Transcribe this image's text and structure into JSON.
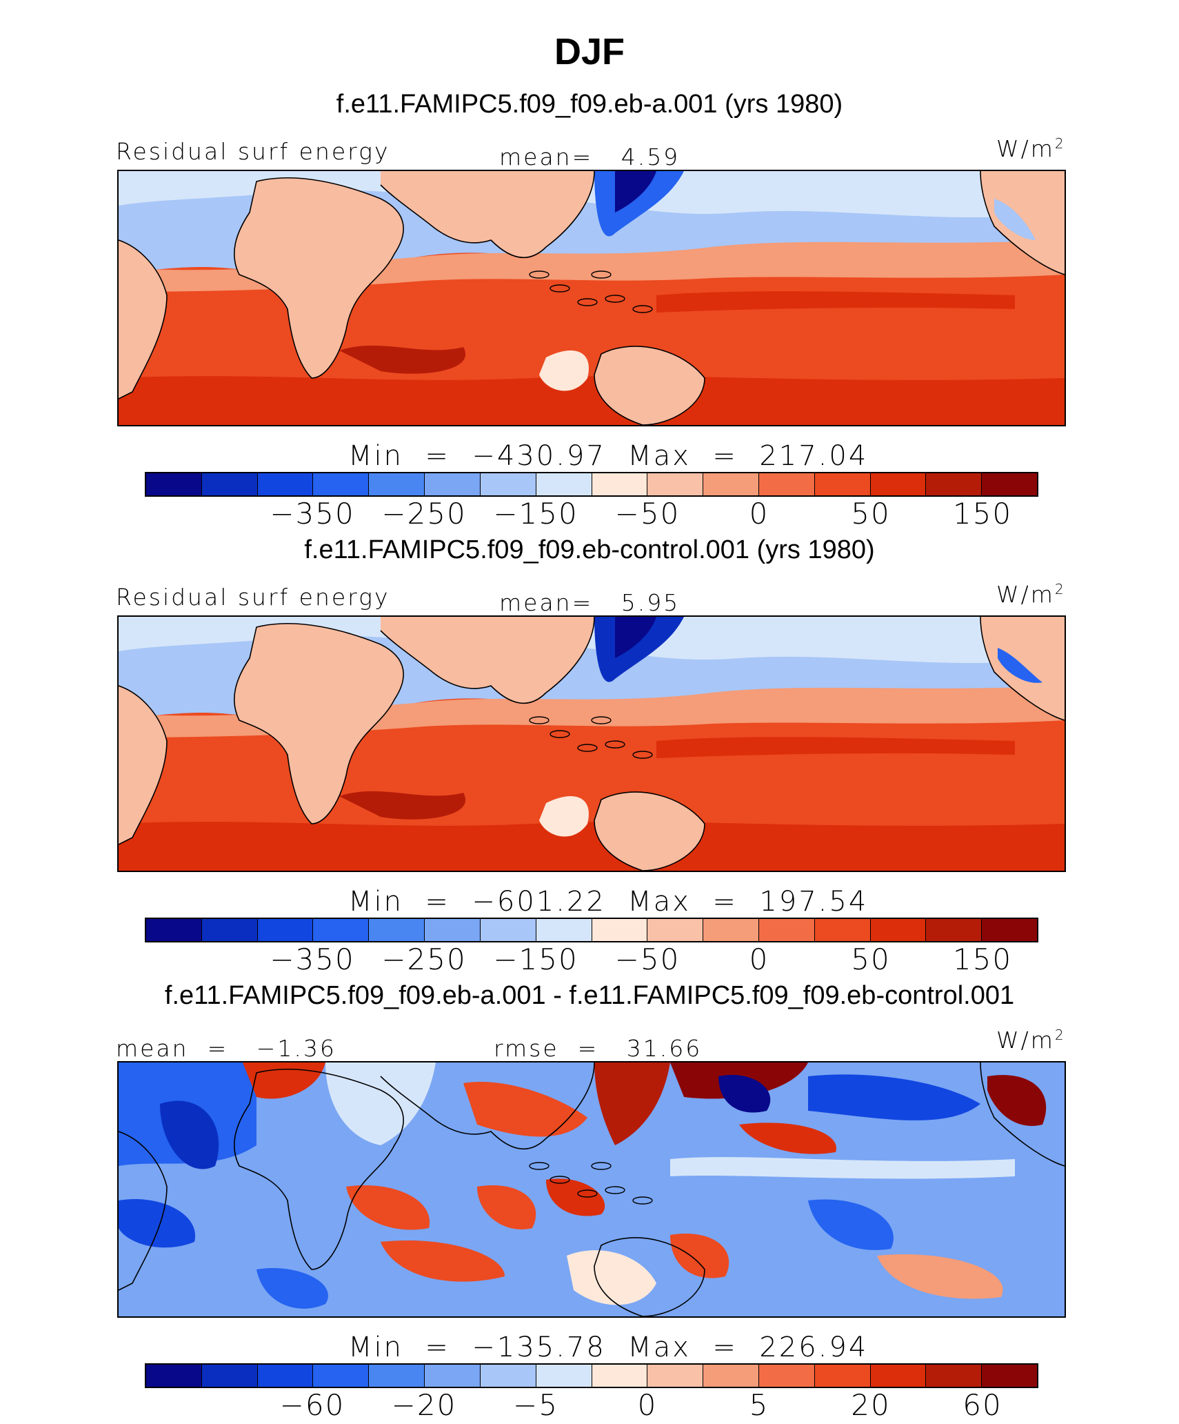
{
  "title": "DJF",
  "colors": {
    "palette_a": [
      "#08088a",
      "#0a2fc0",
      "#1246e0",
      "#2563f0",
      "#4a86f2",
      "#7aa6f4",
      "#a8c6f7",
      "#d6e6fa",
      "#fde8da",
      "#f9c2a8",
      "#f59c78",
      "#f26d45",
      "#ec4a20",
      "#dc2e0a",
      "#b51c08",
      "#8a0606"
    ],
    "land": "#f8bca0",
    "coast": "#000000"
  },
  "panels": [
    {
      "case_title": "f.e11.FAMIPC5.f09_f09.eb-a.001 (yrs 1980)",
      "left_label": "Residual surf energy",
      "center_label": "mean=   4.59",
      "unit": "W/m",
      "unit_sup": "2",
      "minmax": "Min  =  −430.97  Max  =  217.04",
      "variant": "a"
    },
    {
      "case_title": "f.e11.FAMIPC5.f09_f09.eb-control.001 (yrs 1980)",
      "left_label": "Residual surf energy",
      "center_label": "mean=   5.95",
      "unit": "W/m",
      "unit_sup": "2",
      "minmax": "Min  =  −601.22  Max  =  197.54",
      "variant": "b"
    },
    {
      "case_title": "f.e11.FAMIPC5.f09_f09.eb-a.001 - f.e11.FAMIPC5.f09_f09.eb-control.001",
      "left_label": "mean  =   −1.36",
      "center_label": "rmse  =   31.66",
      "unit": "W/m",
      "unit_sup": "2",
      "minmax": "Min  =  −135.78  Max  =  226.94",
      "variant": "diff"
    }
  ],
  "chart_data": [
    {
      "type": "heatmap",
      "title": "f.e11.FAMIPC5.f09_f09.eb-a.001 (yrs 1980)",
      "variable": "Residual surf energy",
      "units": "W/m2",
      "mean": 4.59,
      "min": -430.97,
      "max": 217.04,
      "colorbar_tick_labels": [
        "−350",
        "−250",
        "−150",
        "−50",
        "0",
        "50",
        "150"
      ]
    },
    {
      "type": "heatmap",
      "title": "f.e11.FAMIPC5.f09_f09.eb-control.001 (yrs 1980)",
      "variable": "Residual surf energy",
      "units": "W/m2",
      "mean": 5.95,
      "min": -601.22,
      "max": 197.54,
      "colorbar_tick_labels": [
        "−350",
        "−250",
        "−150",
        "−50",
        "0",
        "50",
        "150"
      ]
    },
    {
      "type": "heatmap",
      "title": "f.e11.FAMIPC5.f09_f09.eb-a.001 - f.e11.FAMIPC5.f09_f09.eb-control.001",
      "units": "W/m2",
      "mean": -1.36,
      "rmse": 31.66,
      "min": -135.78,
      "max": 226.94,
      "colorbar_tick_labels": [
        "−60",
        "−20",
        "−5",
        "0",
        "5",
        "20",
        "60"
      ]
    }
  ]
}
